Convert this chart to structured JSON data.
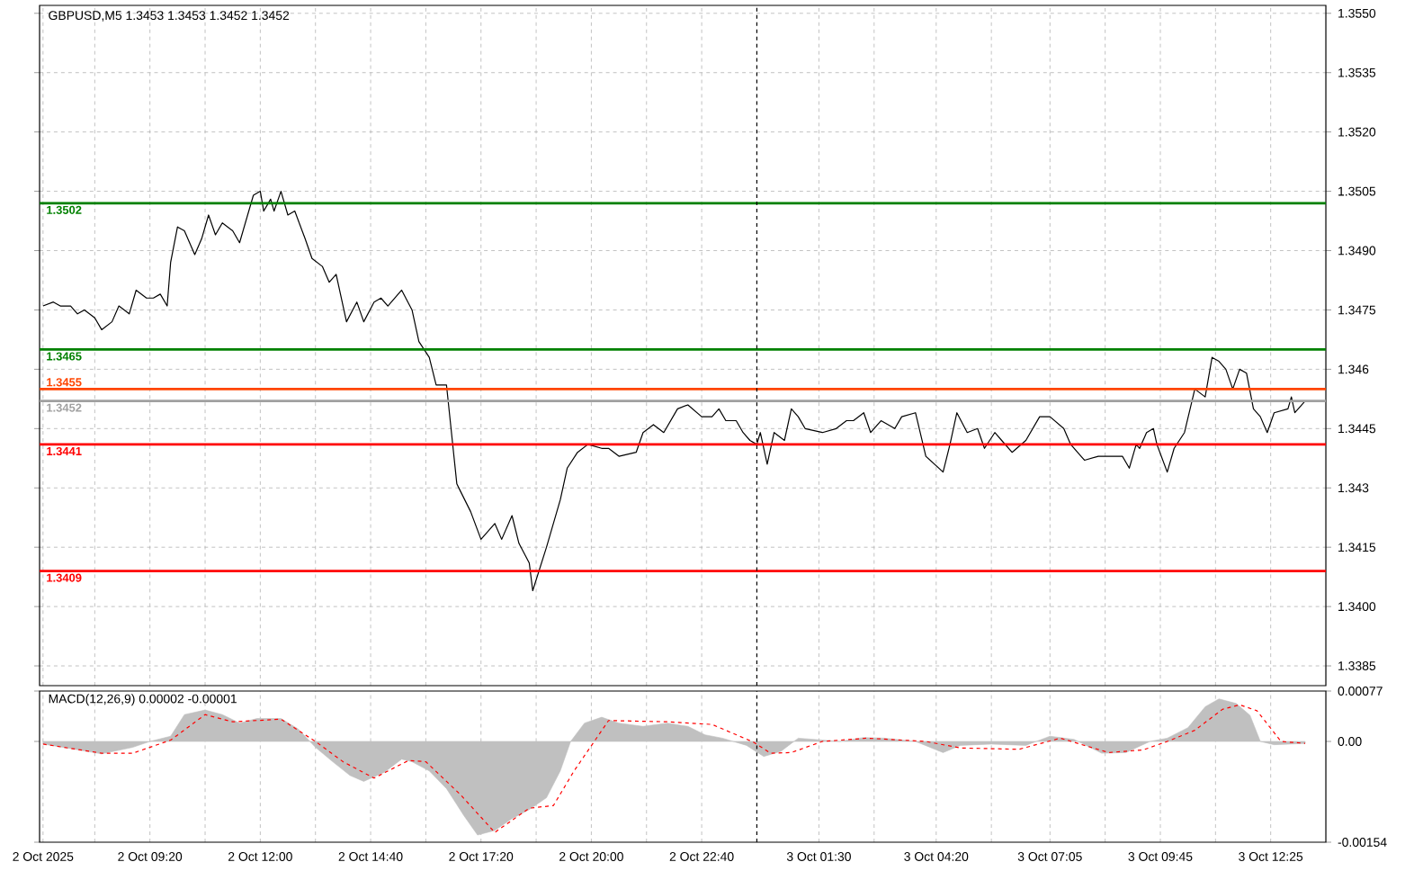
{
  "chart_data": [
    {
      "type": "line",
      "title": "GBPUSD,M5  1.3453 1.3453 1.3452 1.3452",
      "color": "#000000",
      "x": [
        "2025-10-02T06:45",
        "2025-10-02T07:00",
        "2025-10-02T07:10",
        "2025-10-02T07:25",
        "2025-10-02T07:35",
        "2025-10-02T07:45",
        "2025-10-02T08:00",
        "2025-10-02T08:10",
        "2025-10-02T08:25",
        "2025-10-02T08:35",
        "2025-10-02T08:50",
        "2025-10-02T09:00",
        "2025-10-02T09:15",
        "2025-10-02T09:25",
        "2025-10-02T09:35",
        "2025-10-02T09:45",
        "2025-10-02T09:50",
        "2025-10-02T10:00",
        "2025-10-02T10:10",
        "2025-10-02T10:25",
        "2025-10-02T10:35",
        "2025-10-02T10:45",
        "2025-10-02T10:55",
        "2025-10-02T11:05",
        "2025-10-02T11:20",
        "2025-10-02T11:30",
        "2025-10-02T11:50",
        "2025-10-02T12:00",
        "2025-10-02T12:05",
        "2025-10-02T12:15",
        "2025-10-02T12:20",
        "2025-10-02T12:30",
        "2025-10-02T12:40",
        "2025-10-02T12:50",
        "2025-10-02T13:05",
        "2025-10-02T13:15",
        "2025-10-02T13:30",
        "2025-10-02T13:40",
        "2025-10-02T13:50",
        "2025-10-02T14:05",
        "2025-10-02T14:20",
        "2025-10-02T14:30",
        "2025-10-02T14:45",
        "2025-10-02T14:55",
        "2025-10-02T15:05",
        "2025-10-02T15:25",
        "2025-10-02T15:40",
        "2025-10-02T15:50",
        "2025-10-02T16:05",
        "2025-10-02T16:15",
        "2025-10-02T16:30",
        "2025-10-02T16:45",
        "2025-10-02T17:05",
        "2025-10-02T17:20",
        "2025-10-02T17:40",
        "2025-10-02T17:50",
        "2025-10-02T18:05",
        "2025-10-02T18:15",
        "2025-10-02T18:30",
        "2025-10-02T18:35",
        "2025-10-02T18:55",
        "2025-10-02T19:15",
        "2025-10-02T19:25",
        "2025-10-02T19:40",
        "2025-10-02T19:55",
        "2025-10-02T20:15",
        "2025-10-02T20:25",
        "2025-10-02T20:40",
        "2025-10-02T21:05",
        "2025-10-02T21:15",
        "2025-10-02T21:30",
        "2025-10-02T21:45",
        "2025-10-02T22:05",
        "2025-10-02T22:20",
        "2025-10-02T22:40",
        "2025-10-02T22:55",
        "2025-10-02T23:05",
        "2025-10-02T23:15",
        "2025-10-02T23:30",
        "2025-10-02T23:40",
        "2025-10-02T23:50",
        "2025-10-03T00:00",
        "2025-10-03T00:05",
        "2025-10-03T00:15",
        "2025-10-03T00:25",
        "2025-10-03T00:40",
        "2025-10-03T00:50",
        "2025-10-03T01:00",
        "2025-10-03T01:10",
        "2025-10-03T01:35",
        "2025-10-03T01:55",
        "2025-10-03T02:10",
        "2025-10-03T02:20",
        "2025-10-03T02:35",
        "2025-10-03T02:45",
        "2025-10-03T03:00",
        "2025-10-03T03:20",
        "2025-10-03T03:30",
        "2025-10-03T03:50",
        "2025-10-03T04:05",
        "2025-10-03T04:30",
        "2025-10-03T04:40",
        "2025-10-03T04:50",
        "2025-10-03T05:05",
        "2025-10-03T05:20",
        "2025-10-03T05:30",
        "2025-10-03T05:45",
        "2025-10-03T05:55",
        "2025-10-03T06:10",
        "2025-10-03T06:30",
        "2025-10-03T06:50",
        "2025-10-03T07:05",
        "2025-10-03T07:25",
        "2025-10-03T07:35",
        "2025-10-03T07:55",
        "2025-10-03T08:15",
        "2025-10-03T08:40",
        "2025-10-03T08:50",
        "2025-10-03T09:00",
        "2025-10-03T09:10",
        "2025-10-03T09:15",
        "2025-10-03T09:25",
        "2025-10-03T09:35",
        "2025-10-03T09:40",
        "2025-10-03T09:55",
        "2025-10-03T10:05",
        "2025-10-03T10:20",
        "2025-10-03T10:35",
        "2025-10-03T10:50",
        "2025-10-03T11:00",
        "2025-10-03T11:10",
        "2025-10-03T11:20",
        "2025-10-03T11:30",
        "2025-10-03T11:40",
        "2025-10-03T11:50",
        "2025-10-03T12:00",
        "2025-10-03T12:10",
        "2025-10-03T12:20",
        "2025-10-03T12:30",
        "2025-10-03T12:50",
        "2025-10-03T12:55",
        "2025-10-03T13:00",
        "2025-10-03T13:15"
      ],
      "values": [
        1.3476,
        1.3477,
        1.3476,
        1.3476,
        1.3474,
        1.3475,
        1.3473,
        1.347,
        1.3472,
        1.3476,
        1.3474,
        1.348,
        1.3478,
        1.3478,
        1.3479,
        1.3476,
        1.3487,
        1.3496,
        1.3495,
        1.3489,
        1.3493,
        1.3499,
        1.3494,
        1.3497,
        1.3495,
        1.3492,
        1.3504,
        1.3505,
        1.35,
        1.3503,
        1.35,
        1.3505,
        1.3499,
        1.35,
        1.3493,
        1.3488,
        1.3486,
        1.3482,
        1.3484,
        1.3472,
        1.3477,
        1.3472,
        1.3477,
        1.3478,
        1.3476,
        1.348,
        1.3475,
        1.3467,
        1.3463,
        1.3456,
        1.3456,
        1.3431,
        1.3424,
        1.3417,
        1.3421,
        1.3417,
        1.3423,
        1.3416,
        1.3411,
        1.3404,
        1.3415,
        1.3427,
        1.3435,
        1.3439,
        1.3441,
        1.344,
        1.344,
        1.3438,
        1.3439,
        1.3444,
        1.3446,
        1.3444,
        1.345,
        1.3451,
        1.3448,
        1.3448,
        1.345,
        1.3447,
        1.3447,
        1.3444,
        1.3442,
        1.3441,
        1.3444,
        1.3436,
        1.3444,
        1.3442,
        1.345,
        1.3448,
        1.3445,
        1.3444,
        1.3445,
        1.3447,
        1.3447,
        1.3449,
        1.3444,
        1.3447,
        1.3445,
        1.3448,
        1.3449,
        1.3438,
        1.3434,
        1.3441,
        1.3449,
        1.3444,
        1.3445,
        1.344,
        1.3444,
        1.3442,
        1.3439,
        1.3442,
        1.3448,
        1.3448,
        1.3445,
        1.3441,
        1.3437,
        1.3438,
        1.3438,
        1.3438,
        1.3435,
        1.3441,
        1.344,
        1.3444,
        1.3445,
        1.3441,
        1.3434,
        1.344,
        1.3444,
        1.3455,
        1.3453,
        1.3463,
        1.3462,
        1.346,
        1.3455,
        1.346,
        1.3459,
        1.345,
        1.3448,
        1.3444,
        1.3449,
        1.345,
        1.3453,
        1.3449,
        1.3452
      ],
      "xlim": [
        "2025-10-02T06:40",
        "2025-10-03T13:45"
      ],
      "ylim": [
        1.338,
        1.3552
      ],
      "xticks": [
        "2025-10-02T06:45",
        "2025-10-02T08:00",
        "2025-10-02T09:20",
        "2025-10-02T10:40",
        "2025-10-02T12:00",
        "2025-10-02T13:20",
        "2025-10-02T14:40",
        "2025-10-02T16:00",
        "2025-10-02T17:20",
        "2025-10-02T18:40",
        "2025-10-02T20:00",
        "2025-10-02T21:20",
        "2025-10-02T22:40",
        "2025-10-03T00:00",
        "2025-10-03T01:30",
        "2025-10-03T02:50",
        "2025-10-03T04:20",
        "2025-10-03T05:40",
        "2025-10-03T07:05",
        "2025-10-03T08:25",
        "2025-10-03T09:45",
        "2025-10-03T11:05",
        "2025-10-03T12:25"
      ],
      "yticks": [
        1.3385,
        {
          "value": 1.34,
          "label": "1.3400"
        },
        1.3415,
        1.343,
        1.3445,
        1.346,
        1.3475,
        {
          "value": 1.349,
          "label": "1.3490"
        },
        1.3505,
        {
          "value": 1.352,
          "label": "1.3520"
        },
        1.3535,
        {
          "value": 1.355,
          "label": "1.3550"
        }
      ],
      "grid": true,
      "tick_labels": "y",
      "ref_lines": [
        {
          "axis": "y",
          "value": 1.3502,
          "label": "1.3502",
          "color": "#008000"
        },
        {
          "axis": "y",
          "value": 1.3465,
          "label": "1.3465",
          "color": "#008000"
        },
        {
          "axis": "y",
          "value": 1.3455,
          "label": "1.3455",
          "color": "#ff4500"
        },
        {
          "axis": "y",
          "value": 1.3452,
          "label": "1.3452",
          "color": "#a0a0a0"
        },
        {
          "axis": "y",
          "value": 1.3441,
          "label": "1.3441",
          "color": "#ff0000"
        },
        {
          "axis": "y",
          "value": 1.3409,
          "label": "1.3409",
          "color": "#ff0000"
        },
        {
          "axis": "x",
          "value": "2025-10-03T00:00",
          "color": "#000000",
          "line_style": "dashed"
        }
      ]
    },
    {
      "type": "area",
      "title": "MACD(12,26,9) 0.00002 -0.00001",
      "series": [
        {
          "type": "area",
          "color": "#c0c0c0",
          "x": [
            "2025-10-02T06:45",
            "2025-10-02T07:20",
            "2025-10-02T08:10",
            "2025-10-02T08:55",
            "2025-10-02T09:20",
            "2025-10-02T09:50",
            "2025-10-02T10:10",
            "2025-10-02T10:40",
            "2025-10-02T11:05",
            "2025-10-02T11:30",
            "2025-10-02T11:55",
            "2025-10-02T12:30",
            "2025-10-02T12:55",
            "2025-10-02T13:20",
            "2025-10-02T13:45",
            "2025-10-02T14:10",
            "2025-10-02T14:30",
            "2025-10-02T15:00",
            "2025-10-02T15:25",
            "2025-10-02T15:40",
            "2025-10-02T16:05",
            "2025-10-02T16:30",
            "2025-10-02T16:55",
            "2025-10-02T17:15",
            "2025-10-02T17:40",
            "2025-10-02T18:05",
            "2025-10-02T18:30",
            "2025-10-02T18:55",
            "2025-10-02T19:15",
            "2025-10-02T19:30",
            "2025-10-02T19:50",
            "2025-10-02T20:15",
            "2025-10-02T20:40",
            "2025-10-02T21:15",
            "2025-10-02T21:50",
            "2025-10-02T22:20",
            "2025-10-02T22:45",
            "2025-10-02T23:10",
            "2025-10-02T23:45",
            "2025-10-03T00:10",
            "2025-10-03T00:35",
            "2025-10-03T01:00",
            "2025-10-03T02:00",
            "2025-10-03T02:35",
            "2025-10-03T03:05",
            "2025-10-03T03:50",
            "2025-10-03T04:30",
            "2025-10-03T04:55",
            "2025-10-03T05:40",
            "2025-10-03T06:30",
            "2025-10-03T07:05",
            "2025-10-03T07:40",
            "2025-10-03T08:20",
            "2025-10-03T08:55",
            "2025-10-03T09:30",
            "2025-10-03T09:55",
            "2025-10-03T10:25",
            "2025-10-03T10:50",
            "2025-10-03T11:10",
            "2025-10-03T11:35",
            "2025-10-03T11:55",
            "2025-10-03T12:10",
            "2025-10-03T12:30",
            "2025-10-03T13:15"
          ],
          "values": [
            -4e-05,
            -0.0001,
            -0.00019,
            -9e-05,
            0.0,
            8e-05,
            0.00041,
            0.00048,
            0.00041,
            0.00028,
            0.00035,
            0.00035,
            0.00019,
            -9e-05,
            -0.00031,
            -0.00052,
            -0.00061,
            -0.00047,
            -0.00027,
            -0.00031,
            -0.00045,
            -0.00072,
            -0.00113,
            -0.00143,
            -0.00136,
            -0.00118,
            -0.00104,
            -0.00086,
            -0.00045,
            0.0,
            0.00028,
            0.00037,
            0.00028,
            0.00023,
            0.00028,
            0.00023,
            0.0001,
            5e-05,
            -6e-05,
            -0.00023,
            -0.00015,
            5e-05,
            0.0,
            6e-05,
            5e-05,
            0.0,
            -0.00017,
            -6e-05,
            -4e-05,
            -6e-05,
            8e-05,
            3e-05,
            -0.00018,
            -0.00017,
            0.0,
            5e-05,
            0.00021,
            0.00053,
            0.00065,
            0.00058,
            0.0004,
            0.0,
            -5e-05,
            -3e-05
          ]
        },
        {
          "type": "line",
          "color": "#ff0000",
          "line_style": "dashed",
          "x": [
            "2025-10-02T06:45",
            "2025-10-02T08:10",
            "2025-10-02T08:55",
            "2025-10-02T09:50",
            "2025-10-02T10:40",
            "2025-10-02T11:20",
            "2025-10-02T12:30",
            "2025-10-02T13:20",
            "2025-10-02T14:00",
            "2025-10-02T14:45",
            "2025-10-02T15:35",
            "2025-10-02T16:00",
            "2025-10-02T16:50",
            "2025-10-02T17:40",
            "2025-10-02T18:30",
            "2025-10-02T19:05",
            "2025-10-02T19:35",
            "2025-10-02T20:25",
            "2025-10-02T21:50",
            "2025-10-02T22:55",
            "2025-10-02T23:55",
            "2025-10-03T00:20",
            "2025-10-03T00:50",
            "2025-10-03T01:35",
            "2025-10-03T02:40",
            "2025-10-03T04:05",
            "2025-10-03T04:55",
            "2025-10-03T06:20",
            "2025-10-03T07:20",
            "2025-10-03T08:30",
            "2025-10-03T09:20",
            "2025-10-03T09:55",
            "2025-10-03T10:35",
            "2025-10-03T11:15",
            "2025-10-03T11:40",
            "2025-10-03T12:05",
            "2025-10-03T12:40",
            "2025-10-03T13:15"
          ],
          "values": [
            -4e-05,
            -0.00018,
            -0.00018,
            2e-05,
            0.00041,
            0.0003,
            0.00034,
            0.0,
            -0.00031,
            -0.00056,
            -0.00029,
            -0.00031,
            -0.00081,
            -0.00139,
            -0.00102,
            -0.00098,
            -0.00045,
            0.00032,
            0.0003,
            0.00026,
            -1e-05,
            -0.00018,
            -0.00017,
            0.0,
            5e-05,
            0.0,
            -0.0001,
            -0.00012,
            5e-05,
            -0.00017,
            -0.00013,
            0.0,
            0.00017,
            0.00049,
            0.00056,
            0.00047,
            0.0,
            -3e-05
          ]
        }
      ],
      "xlim": [
        "2025-10-02T06:40",
        "2025-10-03T13:45"
      ],
      "ylim": [
        -0.00154,
        0.00077
      ],
      "xticks": [
        {
          "value": "2025-10-02T06:45",
          "label": "2 Oct 2025"
        },
        {
          "value": "2025-10-02T08:00",
          "label": null
        },
        {
          "value": "2025-10-02T09:20",
          "label": "2 Oct 09:20"
        },
        {
          "value": "2025-10-02T10:40",
          "label": null
        },
        {
          "value": "2025-10-02T12:00",
          "label": "2 Oct 12:00"
        },
        {
          "value": "2025-10-02T13:20",
          "label": null
        },
        {
          "value": "2025-10-02T14:40",
          "label": "2 Oct 14:40"
        },
        {
          "value": "2025-10-02T16:00",
          "label": null
        },
        {
          "value": "2025-10-02T17:20",
          "label": "2 Oct 17:20"
        },
        {
          "value": "2025-10-02T18:40",
          "label": null
        },
        {
          "value": "2025-10-02T20:00",
          "label": "2 Oct 20:00"
        },
        {
          "value": "2025-10-02T21:20",
          "label": null
        },
        {
          "value": "2025-10-02T22:40",
          "label": "2 Oct 22:40"
        },
        {
          "value": "2025-10-03T00:00",
          "label": null
        },
        {
          "value": "2025-10-03T01:30",
          "label": "3 Oct 01:30"
        },
        {
          "value": "2025-10-03T02:50",
          "label": null
        },
        {
          "value": "2025-10-03T04:20",
          "label": "3 Oct 04:20"
        },
        {
          "value": "2025-10-03T05:40",
          "label": null
        },
        {
          "value": "2025-10-03T07:05",
          "label": "3 Oct 07:05"
        },
        {
          "value": "2025-10-03T08:25",
          "label": null
        },
        {
          "value": "2025-10-03T09:45",
          "label": "3 Oct 09:45"
        },
        {
          "value": "2025-10-03T11:05",
          "label": null
        },
        {
          "value": "2025-10-03T12:25",
          "label": "3 Oct 12:25"
        }
      ],
      "yticks": [
        -0.00154,
        {
          "value": 0,
          "label": "0.00"
        },
        0.00077
      ],
      "grid": "x",
      "ref_lines": [
        {
          "axis": "x",
          "value": "2025-10-03T00:00",
          "color": "#000000",
          "line_style": "dashed"
        }
      ]
    }
  ]
}
